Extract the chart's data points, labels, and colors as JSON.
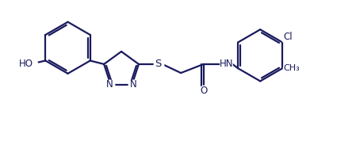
{
  "bg_color": "#ffffff",
  "line_color": "#1a1a5e",
  "line_width": 1.6,
  "font_size": 8.5,
  "fig_width": 4.49,
  "fig_height": 1.88,
  "dpi": 100,
  "xlim": [
    -0.5,
    10.5
  ],
  "ylim": [
    -0.2,
    4.5
  ]
}
